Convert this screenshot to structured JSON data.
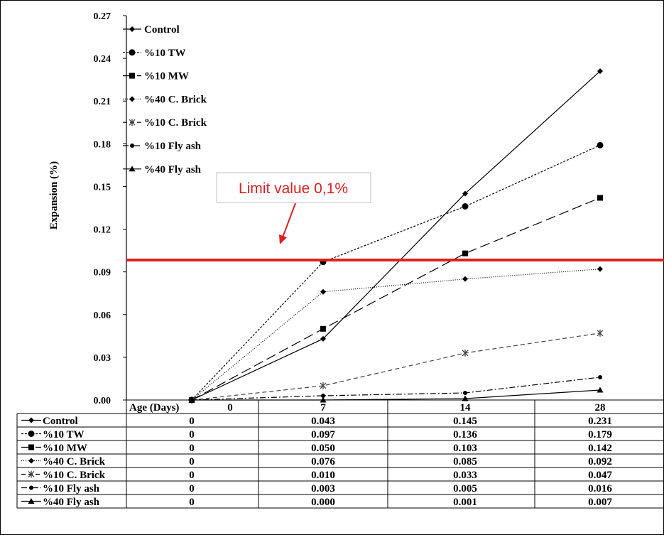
{
  "chart_data": {
    "type": "line",
    "ylabel": "Expansion (%)",
    "xlabel": "Age (Days)",
    "categories": [
      "0",
      "7",
      "14",
      "28"
    ],
    "y_ticks": [
      "0.00",
      "0.03",
      "0.06",
      "0.09",
      "0.12",
      "0.15",
      "0.18",
      "0.21",
      "0.24",
      "0.27"
    ],
    "ylim": [
      0,
      0.27
    ],
    "grid": false,
    "legend_position": "top-left",
    "limit_line": {
      "value": 0.1,
      "label": "Limit value 0,1%",
      "color": "#e02020"
    },
    "series": [
      {
        "name": "Control",
        "values": [
          0,
          0.043,
          0.145,
          0.231
        ],
        "marker": "diamond",
        "dash": "solid"
      },
      {
        "name": "%10 TW",
        "values": [
          0,
          0.097,
          0.136,
          0.179
        ],
        "marker": "circle",
        "dash": "dotted"
      },
      {
        "name": "%10 MW",
        "values": [
          0,
          0.05,
          0.103,
          0.142
        ],
        "marker": "square",
        "dash": "longdash"
      },
      {
        "name": "%40 C. Brick",
        "values": [
          0,
          0.076,
          0.085,
          0.092
        ],
        "marker": "diamond",
        "dash": "finedot"
      },
      {
        "name": "%10 C. Brick",
        "values": [
          0,
          0.01,
          0.033,
          0.047
        ],
        "marker": "star",
        "dash": "dash"
      },
      {
        "name": "%10 Fly ash",
        "values": [
          0,
          0.003,
          0.005,
          0.016
        ],
        "marker": "smallcircle",
        "dash": "dashdot"
      },
      {
        "name": "%40 Fly ash",
        "values": [
          0,
          0.0,
          0.001,
          0.007
        ],
        "marker": "triangle",
        "dash": "solid"
      }
    ],
    "table": {
      "header": "Age (Days)",
      "columns": [
        "0",
        "7",
        "14",
        "28"
      ],
      "rows": [
        [
          "0",
          "0.043",
          "0.145",
          "0.231"
        ],
        [
          "0",
          "0.097",
          "0.136",
          "0.179"
        ],
        [
          "0",
          "0.050",
          "0.103",
          "0.142"
        ],
        [
          "0",
          "0.076",
          "0.085",
          "0.092"
        ],
        [
          "0",
          "0.010",
          "0.033",
          "0.047"
        ],
        [
          "0",
          "0.003",
          "0.005",
          "0.016"
        ],
        [
          "0",
          "0.000",
          "0.001",
          "0.007"
        ]
      ]
    }
  }
}
